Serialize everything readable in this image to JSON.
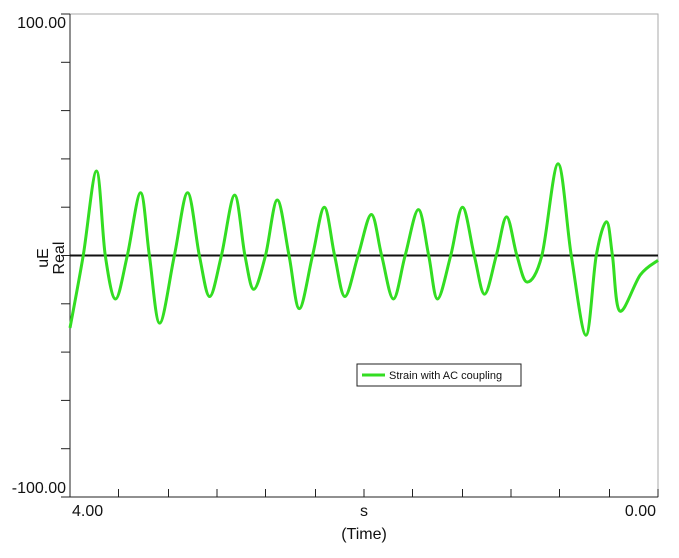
{
  "chart_data": {
    "type": "line",
    "y_label_unit": "uE",
    "y_label": "Real",
    "x_label_unit": "s",
    "x_label": "(Time)",
    "xlim": [
      4,
      0
    ],
    "ylim": [
      -100,
      100
    ],
    "xticks": [
      {
        "value": 4,
        "label": "4.00"
      },
      {
        "value": 0,
        "label": "0.00"
      }
    ],
    "xminorticks": [
      3.67,
      3.33,
      3,
      2.67,
      2.33,
      2,
      1.67,
      1.33,
      1,
      0.67,
      0.33
    ],
    "yticks": [
      {
        "value": -100,
        "label": "-100.00"
      },
      {
        "value": 100,
        "label": "100.00"
      }
    ],
    "yminorticks": [
      -80,
      -60,
      -40,
      -20,
      0,
      20,
      40,
      60,
      80
    ],
    "x": [
      4.0,
      3.91,
      3.82,
      3.76,
      3.69,
      3.61,
      3.52,
      3.46,
      3.39,
      3.29,
      3.2,
      3.12,
      3.05,
      2.97,
      2.88,
      2.81,
      2.75,
      2.67,
      2.59,
      2.51,
      2.44,
      2.35,
      2.27,
      2.2,
      2.13,
      2.04,
      1.95,
      1.88,
      1.8,
      1.72,
      1.63,
      1.56,
      1.5,
      1.41,
      1.33,
      1.25,
      1.18,
      1.1,
      1.03,
      0.96,
      0.89,
      0.79,
      0.68,
      0.59,
      0.49,
      0.42,
      0.35,
      0.31,
      0.26,
      0.12,
      0.0
    ],
    "series": [
      {
        "name": "Strain with AC coupling",
        "color": "#33dd22",
        "values": [
          -30,
          0,
          35,
          0,
          -18,
          0,
          26,
          0,
          -28,
          0,
          26,
          0,
          -17,
          0,
          25,
          0,
          -14,
          0,
          23,
          0,
          -22,
          0,
          20,
          0,
          -17,
          0,
          17,
          0,
          -18,
          0,
          19,
          0,
          -18,
          0,
          20,
          0,
          -16,
          0,
          16,
          0,
          -11,
          0,
          38,
          0,
          -33,
          0,
          14,
          0,
          -23,
          -8,
          -2
        ]
      }
    ]
  }
}
